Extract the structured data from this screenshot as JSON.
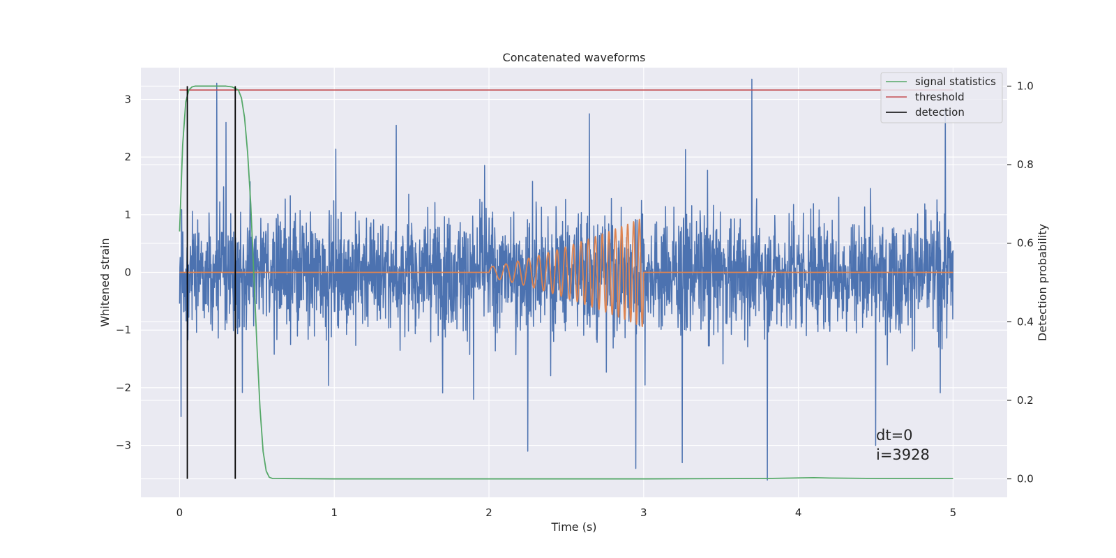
{
  "chart_data": {
    "type": "line",
    "title": "Concatenated waveforms",
    "xlabel": "Time (s)",
    "ylabel": "Whitened strain",
    "y2label": "Detection probability",
    "xlim": [
      -0.25,
      5.35
    ],
    "ylim": [
      -3.9,
      3.55
    ],
    "y2lim": [
      -0.047,
      1.047
    ],
    "xticks": [
      0,
      1,
      2,
      3,
      4,
      5
    ],
    "yticks": [
      -3,
      -2,
      -1,
      0,
      1,
      2,
      3
    ],
    "y2ticks": [
      0.0,
      0.2,
      0.4,
      0.6,
      0.8,
      1.0
    ],
    "grid": true,
    "legend_position": "top-right",
    "legend": [
      "signal statistics",
      "threshold",
      "detection"
    ],
    "annotations": [
      "dt=0",
      "i=3928"
    ],
    "colors": {
      "strain": "#4c72b0",
      "injection": "#dd8452",
      "signal_statistics": "#55a868",
      "threshold": "#c44e52",
      "detection": "#000000",
      "background": "#eaeaf2",
      "grid": "#ffffff"
    },
    "series": [
      {
        "kind": "noise",
        "axis": "left",
        "x_range": [
          0,
          5
        ],
        "typical_amplitude": [
          -1.6,
          1.7
        ],
        "peaks": [
          {
            "x": 0.24,
            "y": 3.28
          },
          {
            "x": 0.3,
            "y": 2.6
          },
          {
            "x": 0.01,
            "y": -2.5
          },
          {
            "x": 1.4,
            "y": 2.55
          },
          {
            "x": 1.9,
            "y": -2.2
          },
          {
            "x": 2.25,
            "y": -3.1
          },
          {
            "x": 2.65,
            "y": 2.75
          },
          {
            "x": 2.95,
            "y": -3.4
          },
          {
            "x": 3.25,
            "y": -3.3
          },
          {
            "x": 3.7,
            "y": 3.35
          },
          {
            "x": 3.8,
            "y": -3.6
          },
          {
            "x": 4.5,
            "y": -3.0
          },
          {
            "x": 4.95,
            "y": 2.85
          }
        ]
      },
      {
        "kind": "chirp",
        "axis": "left",
        "flat_value": 0,
        "chirp_start": 2.0,
        "chirp_end": 3.0,
        "amplitude_start": 0.1,
        "amplitude_end": 0.95,
        "cycles": 19
      },
      {
        "name": "signal statistics",
        "axis": "right",
        "x": [
          0.0,
          0.02,
          0.04,
          0.06,
          0.08,
          0.1,
          0.2,
          0.3,
          0.34,
          0.38,
          0.4,
          0.42,
          0.44,
          0.46,
          0.48,
          0.5,
          0.52,
          0.54,
          0.56,
          0.58,
          0.6,
          1.0,
          3.0,
          3.8,
          4.1,
          4.2,
          4.5,
          5.0
        ],
        "y": [
          0.63,
          0.85,
          0.96,
          0.99,
          0.998,
          1.0,
          1.0,
          1.0,
          0.998,
          0.99,
          0.97,
          0.92,
          0.83,
          0.7,
          0.52,
          0.34,
          0.18,
          0.07,
          0.02,
          0.004,
          0.001,
          0.0,
          0.0,
          0.001,
          0.003,
          0.002,
          0.001,
          0.001
        ]
      },
      {
        "name": "threshold",
        "axis": "right",
        "x": [
          0,
          5
        ],
        "y": [
          0.99,
          0.99
        ]
      },
      {
        "name": "detection",
        "axis": "right",
        "x_positions": [
          0.05,
          0.36
        ],
        "y_range": [
          0,
          1
        ]
      }
    ]
  }
}
